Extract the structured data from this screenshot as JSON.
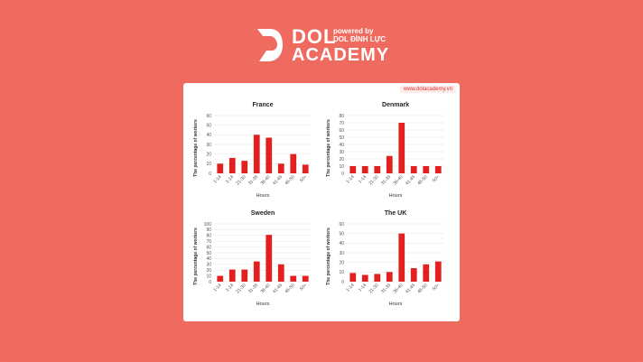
{
  "brand": {
    "name_top": "DOL",
    "powered_line1": "powered by",
    "powered_line2": "DOL ĐÌNH LỰC",
    "name_bottom": "ACADEMY"
  },
  "website": "www.dolacademy.vn",
  "colors": {
    "background": "#f06b60",
    "bar": "#e32020",
    "card": "#ffffff"
  },
  "chart_data": [
    {
      "type": "bar",
      "title": "France",
      "categories": [
        "1-14",
        "1-14",
        "21-30",
        "31-35",
        "36-40",
        "41-45",
        "46-50",
        "50+"
      ],
      "values": [
        10,
        16,
        13,
        40,
        37,
        10,
        20,
        9
      ],
      "xlabel": "Hours",
      "ylabel": "The percentage of workers",
      "ylim": [
        0,
        60
      ],
      "yticks": [
        0,
        10,
        20,
        30,
        40,
        50,
        60
      ],
      "grid": true
    },
    {
      "type": "bar",
      "title": "Denmark",
      "categories": [
        "1-14",
        "1-14",
        "21-30",
        "31-35",
        "36-40",
        "41-45",
        "46-50",
        "50+"
      ],
      "values": [
        10,
        10,
        10,
        24,
        70,
        10,
        10,
        10
      ],
      "xlabel": "Hours",
      "ylabel": "The percentage of workers",
      "ylim": [
        0,
        80
      ],
      "yticks": [
        0,
        10,
        20,
        30,
        40,
        50,
        60,
        70,
        80
      ],
      "grid": true
    },
    {
      "type": "bar",
      "title": "Sweden",
      "categories": [
        "1-14",
        "1-14",
        "21-30",
        "31-35",
        "36-40",
        "41-45",
        "46-50",
        "50+"
      ],
      "values": [
        10,
        21,
        21,
        35,
        81,
        30,
        10,
        10
      ],
      "xlabel": "Hours",
      "ylabel": "The percentage of workers",
      "ylim": [
        0,
        100
      ],
      "yticks": [
        0,
        10,
        20,
        30,
        40,
        50,
        60,
        70,
        80,
        90,
        100
      ],
      "grid": true
    },
    {
      "type": "bar",
      "title": "The UK",
      "categories": [
        "1-14",
        "1-14",
        "21-30",
        "31-35",
        "36-40",
        "41-45",
        "46-50",
        "50+"
      ],
      "values": [
        9,
        7,
        8,
        10,
        50,
        14,
        18,
        21
      ],
      "xlabel": "Hours",
      "ylabel": "The percentage of workers",
      "ylim": [
        0,
        60
      ],
      "yticks": [
        0,
        10,
        20,
        30,
        40,
        50,
        60
      ],
      "grid": true
    }
  ]
}
